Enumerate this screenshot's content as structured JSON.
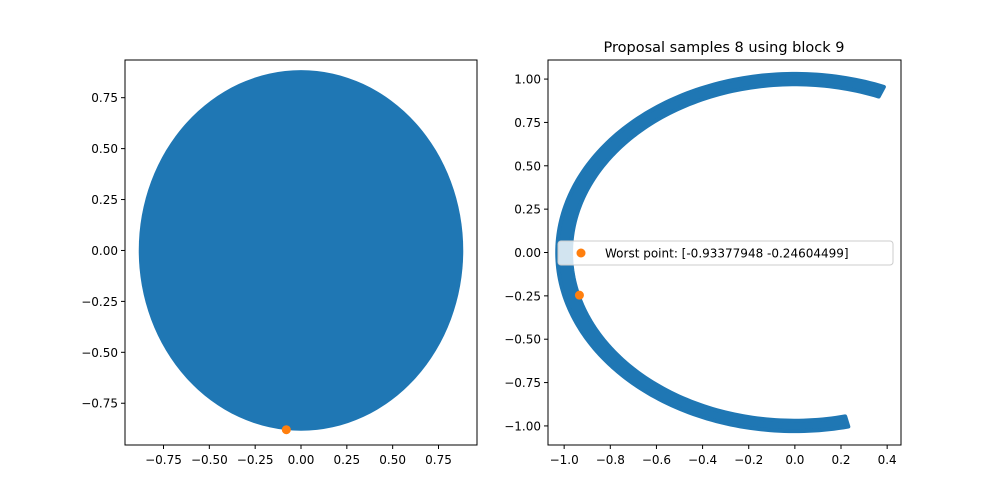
{
  "chart_data": [
    {
      "type": "scatter",
      "title": "",
      "xlabel": "",
      "ylabel": "",
      "xlim": [
        -0.96,
        0.96
      ],
      "ylim": [
        -0.955,
        0.935
      ],
      "xticks": [
        "−0.75",
        "−0.50",
        "−0.25",
        "0.00",
        "0.25",
        "0.50",
        "0.75"
      ],
      "xtick_values": [
        -0.75,
        -0.5,
        -0.25,
        0.0,
        0.25,
        0.5,
        0.75
      ],
      "yticks": [
        "−0.75",
        "−0.50",
        "−0.25",
        "0.00",
        "0.25",
        "0.50",
        "0.75"
      ],
      "ytick_values": [
        -0.75,
        -0.5,
        -0.25,
        0.0,
        0.25,
        0.5,
        0.75
      ],
      "grid": false,
      "series": [
        {
          "shape": "filled-disk",
          "center": [
            0.0,
            0.0
          ],
          "rx": 0.885,
          "ry": 0.885,
          "color": "#1f77b4"
        },
        {
          "shape": "point",
          "points": [
            [
              -0.08,
              -0.88
            ]
          ],
          "color": "#ff7f0e"
        }
      ]
    },
    {
      "type": "scatter",
      "title": "Proposal samples 8 using block 9",
      "xlabel": "",
      "ylabel": "",
      "xlim": [
        -1.07,
        0.46
      ],
      "ylim": [
        -1.11,
        1.11
      ],
      "xticks": [
        "−1.0",
        "−0.8",
        "−0.6",
        "−0.4",
        "−0.2",
        "0.0",
        "0.2",
        "0.4"
      ],
      "xtick_values": [
        -1.0,
        -0.8,
        -0.6,
        -0.4,
        -0.2,
        0.0,
        0.2,
        0.4
      ],
      "yticks": [
        "−1.00",
        "−0.75",
        "−0.50",
        "−0.25",
        "0.00",
        "0.25",
        "0.50",
        "0.75",
        "1.00"
      ],
      "ytick_values": [
        -1.0,
        -0.75,
        -0.5,
        -0.25,
        0.0,
        0.25,
        0.5,
        0.75,
        1.0
      ],
      "grid": false,
      "legend_position": "center-right",
      "series": [
        {
          "shape": "arc-band",
          "radius": 1.0,
          "band_width": 0.06,
          "angle_start_deg": -77,
          "angle_end_deg": 68,
          "gap_side": "right",
          "color": "#1f77b4"
        },
        {
          "name": "Worst point: [-0.93377948 -0.24604499]",
          "shape": "point",
          "points": [
            [
              -0.93377948,
              -0.24604499
            ]
          ],
          "color": "#ff7f0e"
        }
      ]
    }
  ]
}
